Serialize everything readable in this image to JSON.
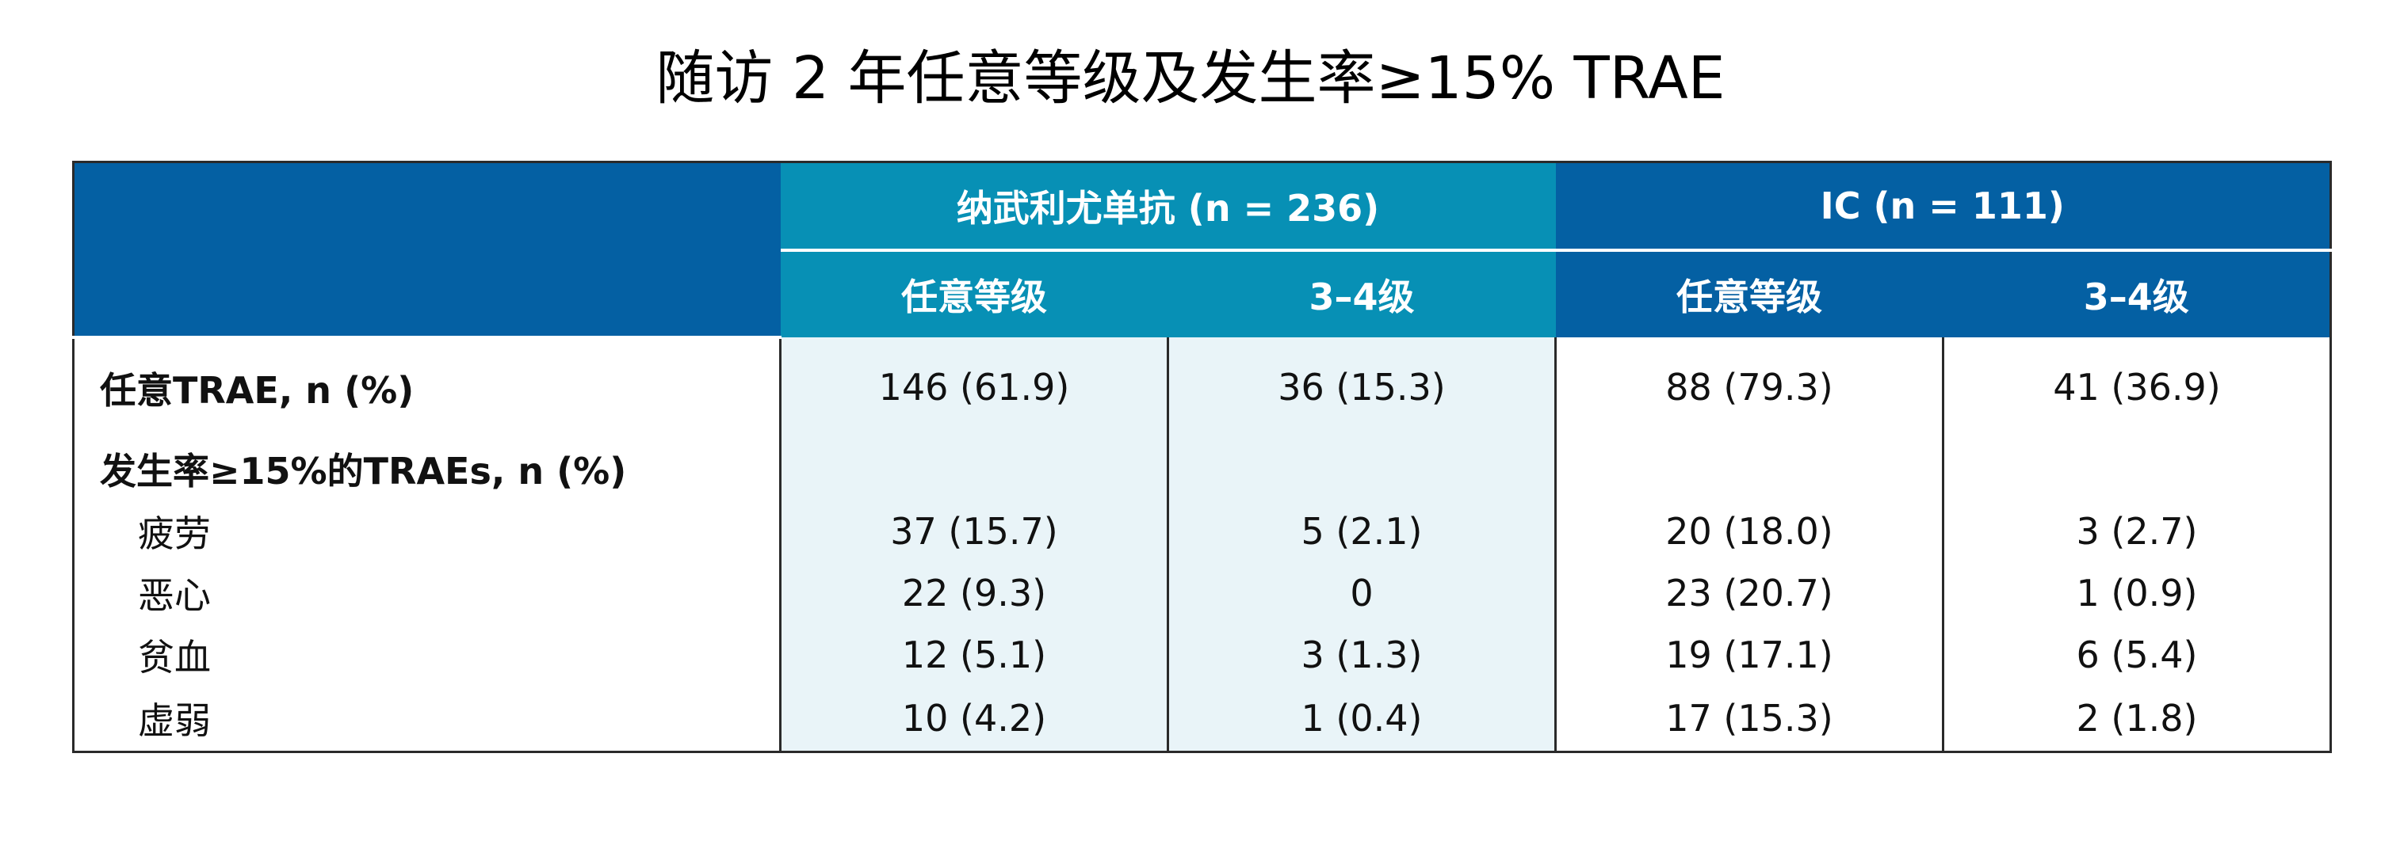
{
  "title": "随访 2 年任意等级及发生率≥15% TRAE",
  "table": {
    "groups": [
      {
        "label": "纳武利尤单抗 (n = 236)",
        "color": "#0790b5"
      },
      {
        "label": "IC (n = 111)",
        "color": "#0460a3"
      }
    ],
    "subheaders": [
      "任意等级",
      "3–4级",
      "任意等级",
      "3–4级"
    ],
    "rows": {
      "any": {
        "label": "任意TRAE, n (%)",
        "values": [
          "146 (61.9)",
          "36 (15.3)",
          "88 (79.3)",
          "41 (36.9)"
        ]
      },
      "section": {
        "label": "发生率≥15%的TRAEs, n (%)"
      },
      "items": [
        {
          "label": "疲劳",
          "values": [
            "37 (15.7)",
            "5 (2.1)",
            "20 (18.0)",
            "3 (2.7)"
          ]
        },
        {
          "label": "恶心",
          "values": [
            "22 (9.3)",
            "0",
            "23 (20.7)",
            "1 (0.9)"
          ]
        },
        {
          "label": "贫血",
          "values": [
            "12 (5.1)",
            "3 (1.3)",
            "19 (17.1)",
            "6 (5.4)"
          ]
        },
        {
          "label": "虚弱",
          "values": [
            "10 (4.2)",
            "1 (0.4)",
            "17 (15.3)",
            "2 (1.8)"
          ]
        }
      ]
    },
    "colors": {
      "header_dark": "#0460a3",
      "header_teal": "#0790b5",
      "nivo_fill": "#e9f4f8"
    }
  }
}
